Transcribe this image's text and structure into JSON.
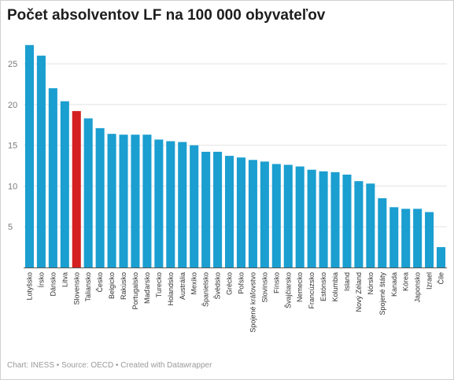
{
  "chart_data": {
    "type": "bar",
    "title": "Počet absolventov LF na 100 000 obyvateľov",
    "categories": [
      "Lotyšsko",
      "Írsko",
      "Dánsko",
      "Litva",
      "Slovensko",
      "Taliansko",
      "Česko",
      "Belgicko",
      "Rakúsko",
      "Portugalsko",
      "Maďarsko",
      "Turecko",
      "Holandsko",
      "Austrália",
      "Mexiko",
      "Španielsko",
      "Švédsko",
      "Grécko",
      "Poľsko",
      "Spojené kráľovstvo",
      "Slovinsko",
      "Fínsko",
      "Švajčiarsko",
      "Nemecko",
      "Francúzsko",
      "Estónsko",
      "Kolumbia",
      "Island",
      "Nový Zéland",
      "Nórsko",
      "Spojené štáty",
      "Kanada",
      "Kórea",
      "Japonsko",
      "Izrael",
      "Čile"
    ],
    "values": [
      27.3,
      26.0,
      22.0,
      20.4,
      19.2,
      18.3,
      17.1,
      16.4,
      16.3,
      16.3,
      16.3,
      15.7,
      15.5,
      15.4,
      15.0,
      14.2,
      14.2,
      13.7,
      13.5,
      13.2,
      13.0,
      12.7,
      12.6,
      12.4,
      12.0,
      11.8,
      11.7,
      11.4,
      10.6,
      10.3,
      8.5,
      7.4,
      7.2,
      7.2,
      6.8,
      2.5
    ],
    "highlight": "Slovensko",
    "colors": {
      "bar": "#1b9ed0",
      "highlight": "#d42020",
      "grid": "#e3e3e3",
      "axis": "#555555"
    },
    "yticks": [
      5,
      10,
      15,
      20,
      25
    ],
    "ylim": [
      0,
      28
    ],
    "grid": true,
    "xlabel": "",
    "ylabel": ""
  },
  "footer": "Chart: INESS • Source: OECD • Created with Datawrapper"
}
